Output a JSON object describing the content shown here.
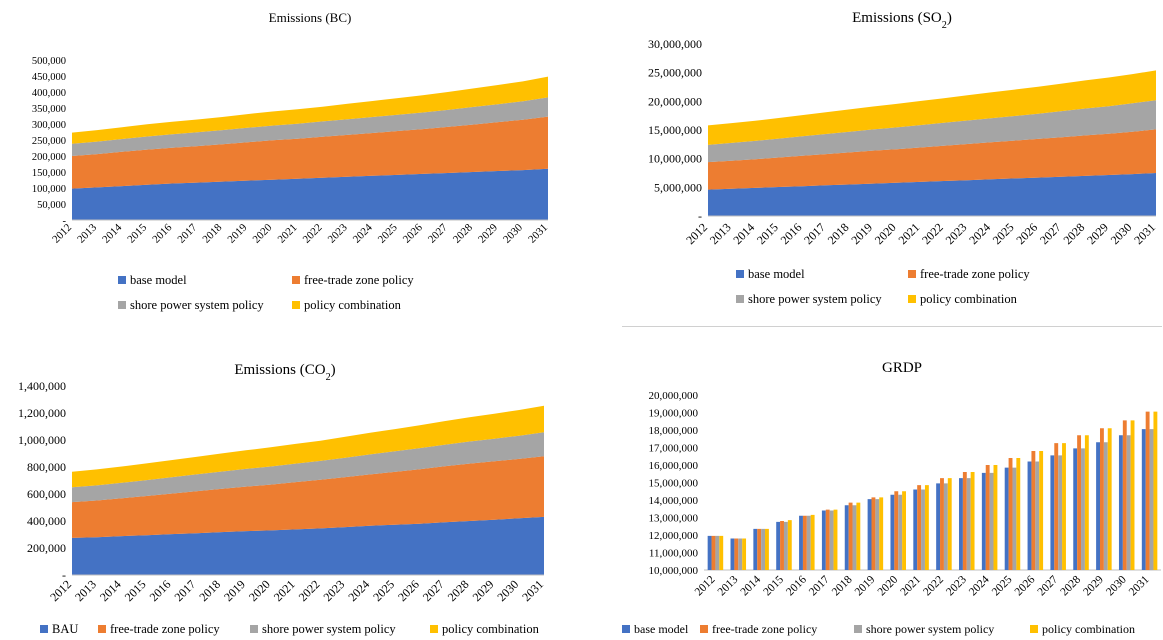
{
  "colors": {
    "blue": "#4472C4",
    "orange": "#ED7D31",
    "gray": "#A5A5A5",
    "yellow": "#FFC000"
  },
  "chart_data": [
    {
      "id": "bc",
      "type": "area",
      "stacked": true,
      "title": "Emissions (BC)",
      "x": [
        "2012",
        "2013",
        "2014",
        "2015",
        "2016",
        "2017",
        "2018",
        "2019",
        "2020",
        "2021",
        "2022",
        "2023",
        "2024",
        "2025",
        "2026",
        "2027",
        "2028",
        "2029",
        "2030",
        "2031"
      ],
      "yticks": [
        "-",
        "50,000",
        "100,000",
        "150,000",
        "200,000",
        "250,000",
        "300,000",
        "350,000",
        "400,000",
        "450,000",
        "500,000"
      ],
      "ylim": [
        0,
        500000
      ],
      "legend_position": "bottom",
      "series": [
        {
          "name": "base model",
          "color": "#4472C4",
          "values": [
            98000,
            102000,
            106000,
            110000,
            114000,
            117000,
            120000,
            123000,
            126000,
            129000,
            132000,
            135000,
            138000,
            141000,
            144000,
            147000,
            150000,
            153000,
            156000,
            160000
          ]
        },
        {
          "name": "free-trade zone policy",
          "color": "#ED7D31",
          "values": [
            102000,
            104000,
            107000,
            110000,
            112000,
            114000,
            117000,
            120000,
            123000,
            125000,
            128000,
            131000,
            134000,
            137000,
            140000,
            144000,
            148000,
            153000,
            157000,
            163000
          ]
        },
        {
          "name": "shore power system policy",
          "color": "#A5A5A5",
          "values": [
            38000,
            39000,
            40000,
            41000,
            42000,
            43000,
            44000,
            45000,
            46000,
            47000,
            48000,
            49000,
            50000,
            51000,
            52000,
            53000,
            55000,
            56000,
            58000,
            60000
          ]
        },
        {
          "name": "policy combination",
          "color": "#FFC000",
          "values": [
            35000,
            36000,
            37000,
            38000,
            39000,
            40000,
            41000,
            43000,
            44000,
            45000,
            46000,
            48000,
            50000,
            52000,
            54000,
            56000,
            58000,
            60000,
            62000,
            65000
          ]
        }
      ]
    },
    {
      "id": "so2",
      "type": "area",
      "stacked": true,
      "title": "Emissions (SO",
      "title_sub": "2",
      "title_suffix": ")",
      "x": [
        "2012",
        "2013",
        "2014",
        "2015",
        "2016",
        "2017",
        "2018",
        "2019",
        "2020",
        "2021",
        "2022",
        "2023",
        "2024",
        "2025",
        "2026",
        "2027",
        "2028",
        "2029",
        "2030",
        "2031"
      ],
      "yticks": [
        "-",
        "5,000,000",
        "10,000,000",
        "15,000,000",
        "20,000,000",
        "25,000,000",
        "30,000,000"
      ],
      "ylim": [
        0,
        30000000
      ],
      "legend_position": "bottom",
      "series": [
        {
          "name": "base model",
          "color": "#4472C4",
          "values": [
            4600000,
            4750000,
            4900000,
            5050000,
            5200000,
            5350000,
            5500000,
            5650000,
            5800000,
            5950000,
            6100000,
            6250000,
            6400000,
            6550000,
            6700000,
            6850000,
            7000000,
            7150000,
            7300000,
            7500000
          ]
        },
        {
          "name": "free-trade zone policy",
          "color": "#ED7D31",
          "values": [
            4800000,
            4900000,
            5000000,
            5150000,
            5300000,
            5450000,
            5600000,
            5750000,
            5850000,
            6000000,
            6150000,
            6300000,
            6450000,
            6600000,
            6750000,
            6900000,
            7050000,
            7200000,
            7400000,
            7600000
          ]
        },
        {
          "name": "shore power system policy",
          "color": "#A5A5A5",
          "values": [
            3000000,
            3100000,
            3200000,
            3300000,
            3400000,
            3500000,
            3600000,
            3700000,
            3800000,
            3900000,
            4000000,
            4100000,
            4200000,
            4300000,
            4400000,
            4550000,
            4700000,
            4800000,
            4950000,
            5100000
          ]
        },
        {
          "name": "policy combination",
          "color": "#FFC000",
          "values": [
            3400000,
            3450000,
            3500000,
            3600000,
            3700000,
            3800000,
            3900000,
            4000000,
            4100000,
            4200000,
            4300000,
            4400000,
            4500000,
            4600000,
            4700000,
            4800000,
            4900000,
            5000000,
            5100000,
            5200000
          ]
        }
      ]
    },
    {
      "id": "co2",
      "type": "area",
      "stacked": true,
      "title": "Emissions (CO",
      "title_sub": "2",
      "title_suffix": ")",
      "x": [
        "2012",
        "2013",
        "2014",
        "2015",
        "2016",
        "2017",
        "2018",
        "2019",
        "2020",
        "2021",
        "2022",
        "2023",
        "2024",
        "2025",
        "2026",
        "2027",
        "2028",
        "2029",
        "2030",
        "2031"
      ],
      "yticks": [
        "-",
        "200,000",
        "400,000",
        "600,000",
        "800,000",
        "1,000,000",
        "1,200,000",
        "1,400,000"
      ],
      "ylim": [
        0,
        1400000
      ],
      "legend_position": "bottom",
      "series": [
        {
          "name": "BAU",
          "color": "#4472C4",
          "values": [
            275000,
            280000,
            288000,
            295000,
            303000,
            310000,
            318000,
            325000,
            330000,
            338000,
            345000,
            355000,
            365000,
            372000,
            380000,
            390000,
            400000,
            410000,
            420000,
            430000
          ]
        },
        {
          "name": "free-trade zone policy",
          "color": "#ED7D31",
          "values": [
            265000,
            272000,
            280000,
            290000,
            300000,
            310000,
            320000,
            330000,
            340000,
            350000,
            360000,
            370000,
            380000,
            392000,
            404000,
            415000,
            425000,
            432000,
            440000,
            450000
          ]
        },
        {
          "name": "shore power system policy",
          "color": "#A5A5A5",
          "values": [
            110000,
            112000,
            115000,
            118000,
            121000,
            125000,
            128000,
            131000,
            134000,
            137000,
            140000,
            144000,
            148000,
            152000,
            156000,
            160000,
            164000,
            168000,
            172000,
            178000
          ]
        },
        {
          "name": "policy combination",
          "color": "#FFC000",
          "values": [
            115000,
            118000,
            121000,
            124000,
            127000,
            130000,
            134000,
            138000,
            142000,
            146000,
            150000,
            155000,
            160000,
            165000,
            170000,
            175000,
            180000,
            185000,
            190000,
            195000
          ]
        }
      ]
    },
    {
      "id": "grdp",
      "type": "bar",
      "title": "GRDP",
      "x": [
        "2012",
        "2013",
        "2014",
        "2015",
        "2016",
        "2017",
        "2018",
        "2019",
        "2020",
        "2021",
        "2022",
        "2023",
        "2024",
        "2025",
        "2026",
        "2027",
        "2028",
        "2029",
        "2030",
        "2031"
      ],
      "yticks": [
        "10,000,000",
        "11,000,000",
        "12,000,000",
        "13,000,000",
        "14,000,000",
        "15,000,000",
        "16,000,000",
        "17,000,000",
        "18,000,000",
        "19,000,000",
        "20,000,000"
      ],
      "ylim": [
        10000000,
        20000000
      ],
      "legend_position": "bottom",
      "series": [
        {
          "name": "base model",
          "color": "#4472C4",
          "values": [
            11950000,
            11800000,
            12350000,
            12750000,
            13100000,
            13400000,
            13700000,
            14050000,
            14300000,
            14600000,
            14950000,
            15250000,
            15550000,
            15850000,
            16200000,
            16550000,
            16950000,
            17300000,
            17700000,
            18050000
          ]
        },
        {
          "name": "free-trade zone policy",
          "color": "#ED7D31",
          "values": [
            11950000,
            11800000,
            12350000,
            12800000,
            13100000,
            13450000,
            13850000,
            14150000,
            14500000,
            14850000,
            15250000,
            15600000,
            16000000,
            16400000,
            16800000,
            17250000,
            17700000,
            18100000,
            18550000,
            19050000
          ]
        },
        {
          "name": "shore power system policy",
          "color": "#A5A5A5",
          "values": [
            11950000,
            11800000,
            12350000,
            12750000,
            13100000,
            13400000,
            13700000,
            14050000,
            14300000,
            14600000,
            14950000,
            15250000,
            15550000,
            15850000,
            16200000,
            16550000,
            16950000,
            17300000,
            17700000,
            18050000
          ]
        },
        {
          "name": "policy combination",
          "color": "#FFC000",
          "values": [
            11950000,
            11800000,
            12350000,
            12850000,
            13150000,
            13450000,
            13850000,
            14150000,
            14500000,
            14850000,
            15250000,
            15600000,
            16000000,
            16400000,
            16800000,
            17250000,
            17700000,
            18100000,
            18550000,
            19050000
          ]
        }
      ]
    }
  ]
}
